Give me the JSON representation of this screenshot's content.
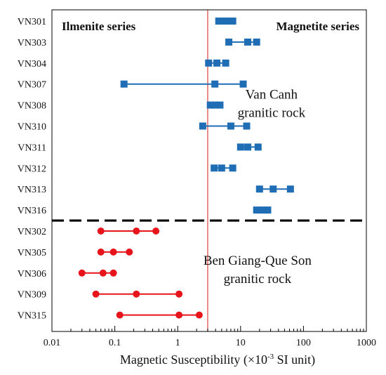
{
  "chart_data": {
    "type": "scatter",
    "xscale": "log",
    "xlim": [
      0.01,
      1000
    ],
    "xticks": [
      0.01,
      0.1,
      1,
      10,
      100,
      1000
    ],
    "xtick_labels": [
      "0.01",
      "0.1",
      "1",
      "10",
      "100",
      "1000"
    ],
    "xlabel": {
      "main": "Magnetic Susceptibility (×10",
      "sup": "-3",
      "tail": " SI unit)"
    },
    "boundary_x": 3,
    "boundary_color": "#e0403a",
    "region_labels": {
      "left": "Ilmenite series",
      "right": "Magnetite series"
    },
    "groups": [
      {
        "label_lines": [
          "Van Canh",
          "granitic rock"
        ],
        "color": "#1f6db5",
        "marker": "square"
      },
      {
        "label_lines": [
          "Ben Giang-Que Son",
          "granitic rock"
        ],
        "color": "#e8141b",
        "marker": "circle"
      }
    ],
    "samples": [
      {
        "name": "VN301",
        "group": 0,
        "values": [
          4.5,
          5.5,
          6.5,
          7.5
        ]
      },
      {
        "name": "VN303",
        "group": 0,
        "values": [
          6.5,
          13,
          18
        ]
      },
      {
        "name": "VN304",
        "group": 0,
        "values": [
          3.1,
          4.2,
          5.8
        ]
      },
      {
        "name": "VN307",
        "group": 0,
        "values": [
          0.14,
          3.9,
          11
        ]
      },
      {
        "name": "VN308",
        "group": 0,
        "values": [
          3.3,
          3.9,
          4.7
        ]
      },
      {
        "name": "VN310",
        "group": 0,
        "values": [
          2.5,
          7,
          12.5
        ]
      },
      {
        "name": "VN311",
        "group": 0,
        "values": [
          10,
          13,
          19
        ]
      },
      {
        "name": "VN312",
        "group": 0,
        "values": [
          3.8,
          5,
          7.5
        ]
      },
      {
        "name": "VN313",
        "group": 0,
        "values": [
          20,
          33,
          62
        ]
      },
      {
        "name": "VN316",
        "group": 0,
        "values": [
          18,
          22,
          27
        ]
      },
      {
        "name": "VN302",
        "group": 1,
        "values": [
          0.06,
          0.22,
          0.45
        ]
      },
      {
        "name": "VN305",
        "group": 1,
        "values": [
          0.06,
          0.095,
          0.17
        ]
      },
      {
        "name": "VN306",
        "group": 1,
        "values": [
          0.03,
          0.065,
          0.095
        ]
      },
      {
        "name": "VN309",
        "group": 1,
        "values": [
          0.05,
          0.22,
          1.05
        ]
      },
      {
        "name": "VN315",
        "group": 1,
        "values": [
          0.12,
          1.05,
          2.2
        ]
      }
    ]
  }
}
